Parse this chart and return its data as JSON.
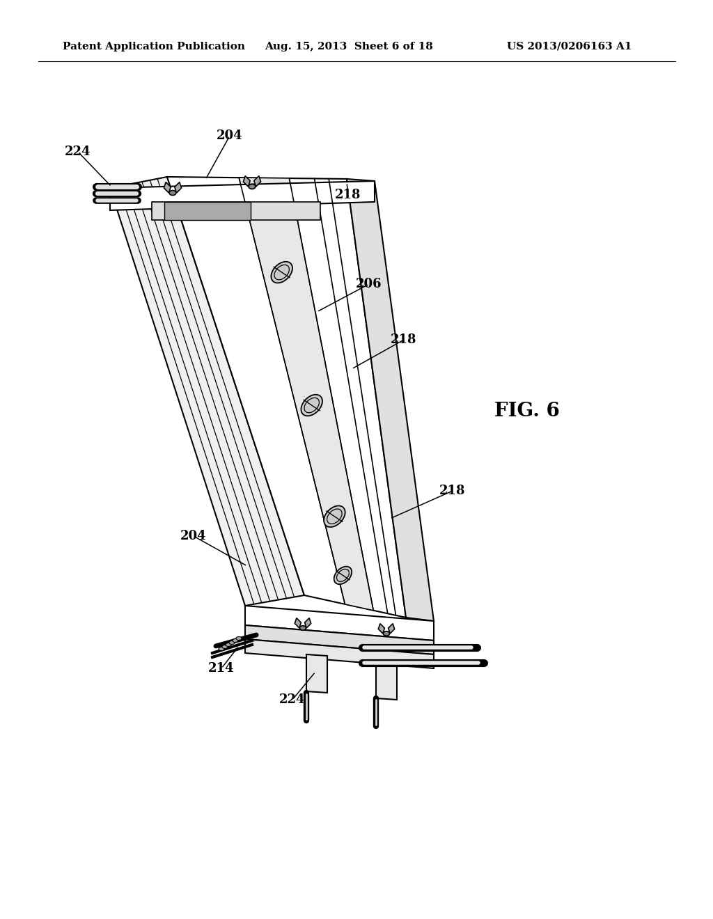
{
  "header_left": "Patent Application Publication",
  "header_center": "Aug. 15, 2013  Sheet 6 of 18",
  "header_right": "US 2013/0206163 A1",
  "fig_label": "FIG. 6",
  "background_color": "#ffffff",
  "line_color": "#000000",
  "header_fontsize": 11,
  "fig_label_fontsize": 20,
  "ann_fontsize": 13,
  "ann_color": "#000000"
}
